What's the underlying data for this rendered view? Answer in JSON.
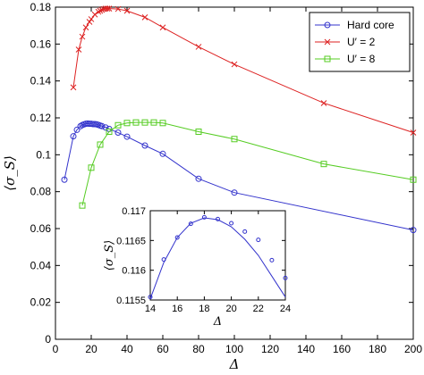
{
  "chart_data": [
    {
      "type": "line",
      "xlabel": "Δ",
      "ylabel": "⟨σ_S⟩",
      "xlim": [
        0,
        200
      ],
      "ylim": [
        0,
        0.18
      ],
      "xticks": [
        0,
        20,
        40,
        60,
        80,
        100,
        120,
        140,
        160,
        180,
        200
      ],
      "yticks": [
        0,
        0.02,
        0.04,
        0.06,
        0.08,
        0.1,
        0.12,
        0.14,
        0.16,
        0.18
      ],
      "xtick_labels": [
        "0",
        "20",
        "40",
        "60",
        "80",
        "100",
        "120",
        "140",
        "160",
        "180",
        "200"
      ],
      "ytick_labels": [
        "0",
        "0.02",
        "0.04",
        "0.06",
        "0.08",
        "0.1",
        "0.12",
        "0.14",
        "0.16",
        "0.18"
      ],
      "grid": false,
      "legend_position": "top-right",
      "series": [
        {
          "name": "Hard core",
          "label_prefix": "Hard core",
          "label_value": "",
          "color": "#3333cc",
          "marker": "circle",
          "x": [
            5,
            10,
            12,
            14,
            15,
            16,
            17,
            18,
            19,
            20,
            21,
            22,
            23,
            24,
            25,
            26,
            28,
            30,
            35,
            40,
            50,
            60,
            80,
            100,
            200
          ],
          "y": [
            0.0865,
            0.11,
            0.1135,
            0.1155,
            0.1161,
            0.1165,
            0.1168,
            0.1169,
            0.1168,
            0.1168,
            0.1166,
            0.1166,
            0.1165,
            0.1162,
            0.1158,
            0.1155,
            0.1148,
            0.114,
            0.112,
            0.1098,
            0.105,
            0.1005,
            0.087,
            0.0795,
            0.0592
          ]
        },
        {
          "name": "U′ = 2",
          "label_prefix": "U′ = ",
          "label_value": "2",
          "color": "#dd2222",
          "marker": "x",
          "x": [
            10,
            13,
            15,
            17,
            19,
            20,
            22,
            24,
            25,
            26,
            27,
            28,
            29,
            30,
            35,
            40,
            50,
            60,
            80,
            100,
            150,
            200
          ],
          "y": [
            0.1365,
            0.157,
            0.164,
            0.169,
            0.172,
            0.1735,
            0.176,
            0.1775,
            0.178,
            0.1785,
            0.179,
            0.1792,
            0.1792,
            0.1792,
            0.179,
            0.178,
            0.1745,
            0.169,
            0.1585,
            0.149,
            0.128,
            0.112
          ]
        },
        {
          "name": "U′ = 8",
          "label_prefix": "U′ = ",
          "label_value": "8",
          "color": "#55cc22",
          "marker": "square",
          "x": [
            15,
            20,
            25,
            30,
            35,
            40,
            45,
            50,
            55,
            60,
            80,
            100,
            150,
            200
          ],
          "y": [
            0.0725,
            0.093,
            0.1055,
            0.1125,
            0.116,
            0.1172,
            0.1175,
            0.1175,
            0.1175,
            0.1172,
            0.1125,
            0.1085,
            0.095,
            0.0865
          ]
        }
      ]
    },
    {
      "type": "line",
      "inset": true,
      "xlabel": "Δ",
      "ylabel": "⟨σ_S⟩",
      "xlim": [
        14,
        24
      ],
      "ylim": [
        0.1155,
        0.117
      ],
      "xticks": [
        14,
        16,
        18,
        20,
        22,
        24
      ],
      "yticks": [
        0.1155,
        0.116,
        0.1165,
        0.117
      ],
      "xtick_labels": [
        "14",
        "16",
        "18",
        "20",
        "22",
        "24"
      ],
      "ytick_labels": [
        "0.1155",
        "0.116",
        "0.1165",
        "0.117"
      ],
      "series": [
        {
          "name": "",
          "color": "#3333cc",
          "marker": "circle",
          "x": [
            14,
            15,
            16,
            17,
            18,
            19,
            20,
            21,
            22,
            23,
            24
          ],
          "y": [
            0.11555,
            0.11618,
            0.11655,
            0.11678,
            0.11689,
            0.11686,
            0.11679,
            0.11665,
            0.11651,
            0.11617,
            0.11587
          ]
        },
        {
          "name": "",
          "color": "#3333cc",
          "marker": "none",
          "x": [
            14,
            15,
            16,
            17,
            18,
            19,
            20,
            21,
            22,
            23,
            24
          ],
          "y": [
            0.11552,
            0.11613,
            0.11655,
            0.11679,
            0.11688,
            0.11685,
            0.11673,
            0.11652,
            0.11625,
            0.1159,
            0.11555
          ]
        }
      ]
    }
  ]
}
